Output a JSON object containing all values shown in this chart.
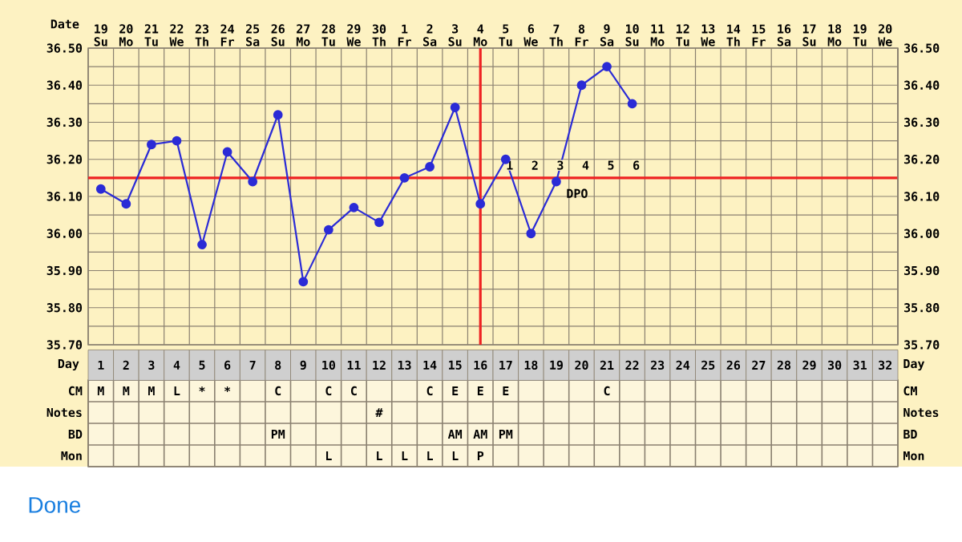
{
  "chart_data": [
    {
      "type": "line",
      "xlabel": "Date",
      "color": "#2b2bd6",
      "marker": "circle",
      "line_style": "solid",
      "grid": true,
      "categories": [
        "19 Su",
        "20 Mo",
        "21 Tu",
        "22 We",
        "23 Th",
        "24 Fr",
        "25 Sa",
        "26 Su",
        "27 Mo",
        "28 Tu",
        "29 We",
        "30 Th",
        "1 Fr",
        "2 Sa",
        "3 Su",
        "4 Mo",
        "5 Tu",
        "6 We",
        "7 Th",
        "8 Fr",
        "9 Sa",
        "10 Su",
        "11 Mo",
        "12 Tu",
        "13 We",
        "14 Th",
        "15 Fr",
        "16 Sa",
        "17 Su",
        "18 Mo",
        "19 Tu",
        "20 We"
      ],
      "values": [
        36.12,
        36.08,
        36.24,
        36.25,
        35.97,
        36.22,
        36.14,
        36.32,
        35.87,
        36.01,
        36.07,
        36.03,
        36.15,
        36.18,
        36.34,
        36.08,
        36.2,
        36.0,
        36.14,
        36.4,
        36.45,
        36.35,
        null,
        null,
        null,
        null,
        null,
        null,
        null,
        null,
        null,
        null
      ],
      "ylim": [
        35.7,
        36.5
      ],
      "yticks": [
        {
          "value": 35.7,
          "label": "35.70"
        },
        {
          "value": 35.8,
          "label": "35.80"
        },
        {
          "value": 35.9,
          "label": "35.90"
        },
        {
          "value": 36.0,
          "label": "36.00"
        },
        {
          "value": 36.1,
          "label": "36.10"
        },
        {
          "value": 36.2,
          "label": "36.20"
        },
        {
          "value": 36.3,
          "label": "36.30"
        },
        {
          "value": 36.4,
          "label": "36.40"
        },
        {
          "value": 36.5,
          "label": "36.50"
        }
      ],
      "y2lim": [
        35.7,
        36.5
      ],
      "y2ticks": [
        {
          "value": 35.7,
          "label": "35.70"
        },
        {
          "value": 35.8,
          "label": "35.80"
        },
        {
          "value": 35.9,
          "label": "35.90"
        },
        {
          "value": 36.0,
          "label": "36.00"
        },
        {
          "value": 36.1,
          "label": "36.10"
        },
        {
          "value": 36.2,
          "label": "36.20"
        },
        {
          "value": 36.3,
          "label": "36.30"
        },
        {
          "value": 36.4,
          "label": "36.40"
        },
        {
          "value": 36.5,
          "label": "36.50"
        }
      ],
      "ref_lines": [
        {
          "axis": "y",
          "value": 36.15,
          "color": "#ee2222"
        },
        {
          "axis": "x",
          "value": "4 Mo",
          "color": "#ee2222"
        }
      ],
      "annotations": [
        "1",
        "2",
        "3",
        "4",
        "5",
        "6",
        "DPO"
      ]
    },
    {
      "type": "heatmap",
      "xlabel": "Day",
      "categories": [
        "1",
        "2",
        "3",
        "4",
        "5",
        "6",
        "7",
        "8",
        "9",
        "10",
        "11",
        "12",
        "13",
        "14",
        "15",
        "16",
        "17",
        "18",
        "19",
        "20",
        "21",
        "22",
        "23",
        "24",
        "25",
        "26",
        "27",
        "28",
        "29",
        "30",
        "31",
        "32"
      ],
      "y_categories": [
        "CM",
        "Notes",
        "BD",
        "Mon"
      ],
      "y2_categories": [
        "CM",
        "Notes",
        "BD",
        "Mon"
      ],
      "cells": [
        [
          null,
          null,
          null,
          null,
          null,
          null,
          null,
          null,
          null,
          null,
          null,
          null,
          null,
          null,
          null,
          null,
          null,
          null,
          null,
          null,
          null,
          null,
          null,
          null,
          null,
          null,
          null,
          null,
          null,
          null,
          null,
          null
        ],
        [
          null,
          null,
          null,
          null,
          null,
          null,
          null,
          null,
          null,
          null,
          null,
          null,
          null,
          null,
          null,
          null,
          null,
          null,
          null,
          null,
          null,
          null,
          null,
          null,
          null,
          null,
          null,
          null,
          null,
          null,
          null,
          null
        ],
        [
          null,
          null,
          null,
          null,
          null,
          null,
          null,
          null,
          null,
          null,
          null,
          null,
          null,
          null,
          null,
          null,
          null,
          null,
          null,
          null,
          null,
          null,
          null,
          null,
          null,
          null,
          null,
          null,
          null,
          null,
          null,
          null
        ],
        [
          null,
          null,
          null,
          null,
          null,
          null,
          null,
          null,
          null,
          null,
          null,
          null,
          null,
          null,
          null,
          null,
          null,
          null,
          null,
          null,
          null,
          null,
          null,
          null,
          null,
          null,
          null,
          null,
          null,
          null,
          null,
          null
        ]
      ],
      "cell_labels": [
        [
          "M",
          "M",
          "M",
          "L",
          "*",
          "*",
          null,
          "C",
          null,
          "C",
          "C",
          null,
          null,
          "C",
          "E",
          "E",
          "E",
          null,
          null,
          null,
          "C",
          null,
          null,
          null,
          null,
          null,
          null,
          null,
          null,
          null,
          null,
          null
        ],
        [
          null,
          null,
          null,
          null,
          null,
          null,
          null,
          null,
          null,
          null,
          null,
          "#",
          null,
          null,
          null,
          null,
          null,
          null,
          null,
          null,
          null,
          null,
          null,
          null,
          null,
          null,
          null,
          null,
          null,
          null,
          null,
          null
        ],
        [
          null,
          null,
          null,
          null,
          null,
          null,
          null,
          "PM",
          null,
          null,
          null,
          null,
          null,
          null,
          "AM",
          "AM",
          "PM",
          null,
          null,
          null,
          null,
          null,
          null,
          null,
          null,
          null,
          null,
          null,
          null,
          null,
          null,
          null
        ],
        [
          null,
          null,
          null,
          null,
          null,
          null,
          null,
          null,
          null,
          "L",
          null,
          "L",
          "L",
          "L",
          "L",
          "P",
          null,
          null,
          null,
          null,
          null,
          null,
          null,
          null,
          null,
          null,
          null,
          null,
          null,
          null,
          null,
          null
        ]
      ],
      "annotations": [
        "Done"
      ]
    }
  ]
}
